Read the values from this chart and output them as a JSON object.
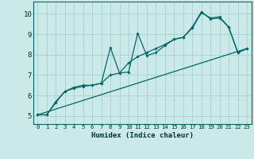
{
  "xlabel": "Humidex (Indice chaleur)",
  "background_color": "#cce9e9",
  "grid_color": "#aad4d4",
  "line_color": "#006666",
  "xlim": [
    -0.5,
    23.5
  ],
  "ylim": [
    4.6,
    10.6
  ],
  "yticks": [
    5,
    6,
    7,
    8,
    9,
    10
  ],
  "xticks": [
    0,
    1,
    2,
    3,
    4,
    5,
    6,
    7,
    8,
    9,
    10,
    11,
    12,
    13,
    14,
    15,
    16,
    17,
    18,
    19,
    20,
    21,
    22,
    23
  ],
  "series1_x": [
    0,
    1,
    2,
    3,
    4,
    5,
    6,
    7,
    8,
    9,
    10,
    11,
    12,
    13,
    14,
    15,
    16,
    17,
    18,
    19,
    20,
    21,
    22,
    23
  ],
  "series1_y": [
    5.05,
    5.05,
    5.65,
    6.2,
    6.35,
    6.45,
    6.5,
    6.6,
    8.35,
    7.1,
    7.15,
    9.05,
    7.95,
    8.1,
    8.45,
    8.75,
    8.85,
    9.3,
    10.05,
    9.8,
    9.85,
    9.35,
    8.1,
    8.3
  ],
  "series2_x": [
    0,
    1,
    2,
    3,
    4,
    5,
    6,
    7,
    8,
    9,
    10,
    11,
    12,
    13,
    14,
    15,
    16,
    17,
    18,
    19,
    20,
    21,
    22,
    23
  ],
  "series2_y": [
    5.05,
    5.05,
    5.7,
    6.2,
    6.4,
    6.5,
    6.5,
    6.6,
    7.0,
    7.1,
    7.6,
    7.9,
    8.1,
    8.3,
    8.5,
    8.75,
    8.85,
    9.35,
    10.1,
    9.75,
    9.8,
    9.35,
    8.1,
    8.3
  ],
  "series3_x": [
    0,
    23
  ],
  "series3_y": [
    5.05,
    8.3
  ]
}
